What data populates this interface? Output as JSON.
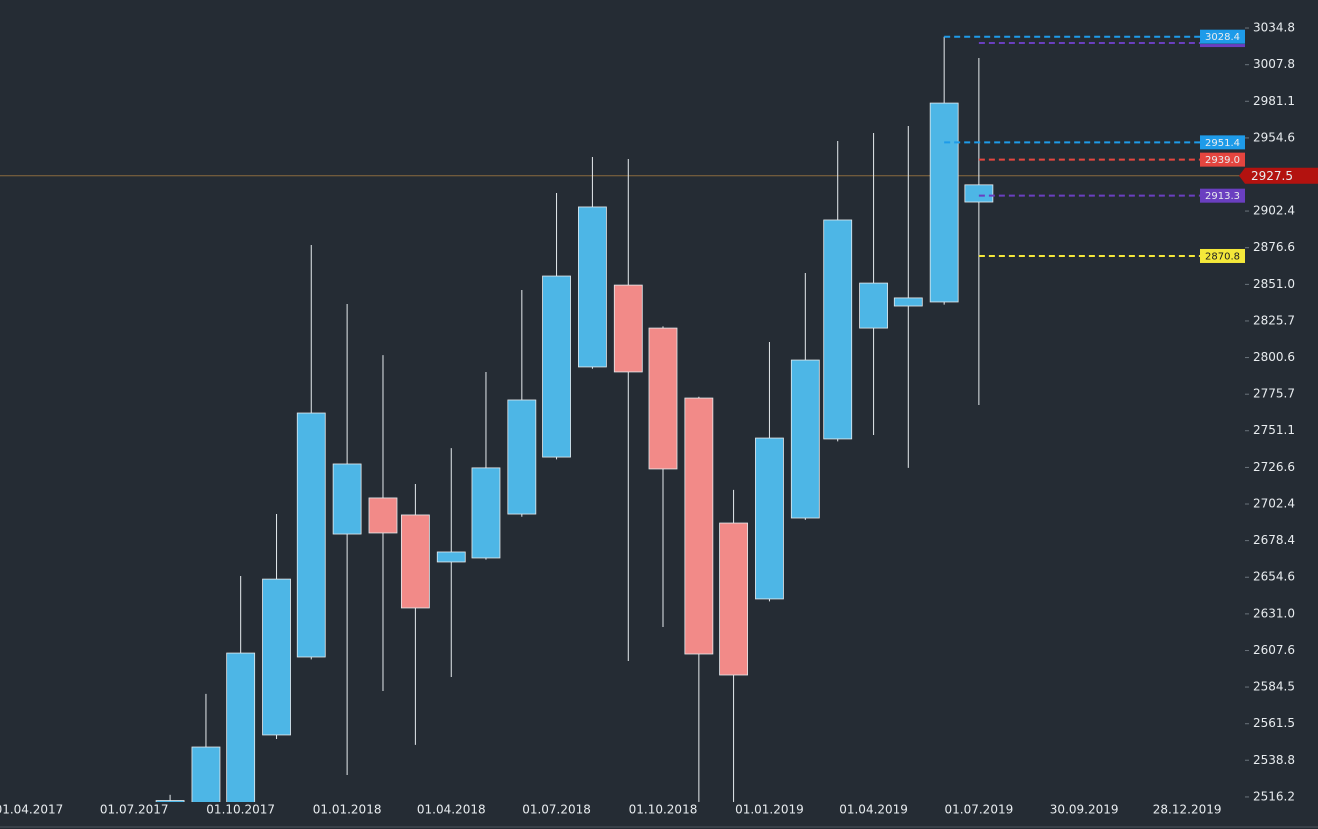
{
  "chart_data": {
    "type": "candlestick",
    "log_y": true,
    "x": [
      "01.08.2017",
      "01.09.2017",
      "01.10.2017",
      "01.11.2017",
      "01.12.2017",
      "01.01.2018",
      "01.02.2018",
      "01.03.2018",
      "01.04.2018",
      "01.05.2018",
      "01.06.2018",
      "01.07.2018",
      "01.08.2018",
      "01.09.2018",
      "01.10.2018",
      "01.11.2018",
      "01.12.2018",
      "01.01.2019",
      "01.02.2019",
      "01.03.2019",
      "01.04.2019",
      "01.05.2019",
      "01.06.2019",
      "01.07.2019"
    ],
    "open": [
      2508,
      2505,
      2508,
      2554.5,
      2603.5,
      2682.7,
      2706.4,
      2695.2,
      2664.5,
      2667.1,
      2695.8,
      2733.5,
      2794.2,
      2850.5,
      2820.8,
      2773.1,
      2689.9,
      2640.6,
      2693.2,
      2745.6,
      2820.8,
      2836.0,
      2838.8,
      2908.8
    ],
    "high": [
      2517.5,
      2580.2,
      2655.4,
      2695.8,
      2878.5,
      2837.4,
      2802.3,
      2715.6,
      2739.5,
      2790.8,
      2847.1,
      2915.2,
      2940.9,
      2939.5,
      2822,
      2774,
      2711.7,
      2811.2,
      2858.9,
      2952.4,
      2958.1,
      2963.2,
      3028.4,
      3012.7
    ],
    "low": [
      2505,
      2500,
      2505,
      2552,
      2602,
      2529.7,
      2582.0,
      2548.3,
      2590.8,
      2666,
      2694,
      2732,
      2793,
      2601.0,
      2622.6,
      2508,
      2508,
      2639,
      2692,
      2744,
      2748.2,
      2726.3,
      2837,
      2768.4
    ],
    "close": [
      2514,
      2547.0,
      2606.0,
      2653.4,
      2763.0,
      2728.9,
      2683.4,
      2634.8,
      2671.0,
      2726.3,
      2771.8,
      2856.8,
      2905.3,
      2790.8,
      2725.6,
      2605.4,
      2592.1,
      2746.2,
      2798.9,
      2896.1,
      2851.9,
      2841.6,
      2979.8,
      2921.0
    ],
    "up_color": "#4db6e6",
    "down_color": "#f28a88",
    "ylim": [
      2513.1,
      3055.6
    ],
    "yticks": [
      3034.8,
      3007.8,
      2981.1,
      2954.6,
      2902.4,
      2876.6,
      {
        "value": 2851,
        "label": "2851.0"
      },
      2825.7,
      2800.6,
      2775.7,
      2751.1,
      2726.6,
      2702.4,
      2678.4,
      2654.6,
      {
        "value": 2631,
        "label": "2631.0"
      },
      2607.6,
      2584.5,
      2561.5,
      2538.8,
      2516.2
    ],
    "xlim": [
      "07.03.2017",
      "16.02.2020"
    ],
    "xticks": [
      "01.04.2017",
      "01.07.2017",
      "01.10.2017",
      "01.01.2018",
      "01.04.2018",
      "01.07.2018",
      "01.10.2018",
      "01.01.2019",
      "01.04.2019",
      "01.07.2019",
      "30.09.2019",
      "28.12.2019"
    ],
    "levels": [
      {
        "value": 3028.4,
        "color": "#1e9be9",
        "start": "01.06.2019",
        "tag": true
      },
      {
        "value": 3023.7,
        "color": "#6a3fc0",
        "start": "01.07.2019",
        "tag": false
      },
      {
        "value": 2951.4,
        "color": "#1e9be9",
        "start": "01.06.2019",
        "tag": true
      },
      {
        "value": 2939,
        "label": "2939.0",
        "color": "#e5453f",
        "start": "01.07.2019",
        "tag": true
      },
      {
        "value": 2913.3,
        "color": "#6a3fc0",
        "start": "01.07.2019",
        "tag": true
      },
      {
        "value": 2870.8,
        "color": "#f4e83a",
        "start": "01.07.2019",
        "tag": true
      }
    ],
    "last_price": {
      "value": 2927.5,
      "color": "#b3120f",
      "line_color": "#8a6a3e"
    }
  }
}
